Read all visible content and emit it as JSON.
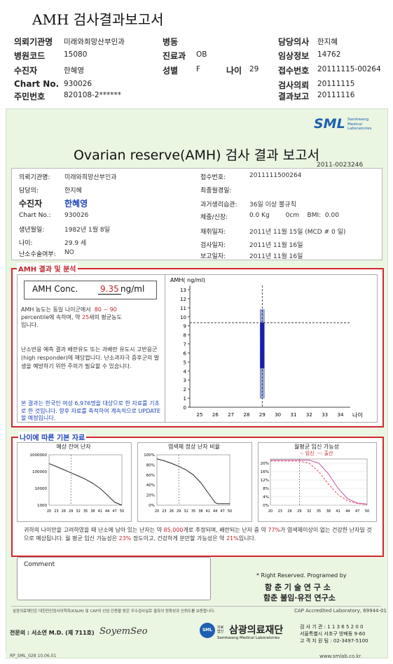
{
  "top": {
    "title": "AMH 검사결과보고서",
    "rows": [
      {
        "l1": "의뢰기관명",
        "v1": "미래와희망산부인과",
        "l2": "병동",
        "v2": "",
        "l3": "",
        "v3": "",
        "l4": "담당의사",
        "v4": "한지혜"
      },
      {
        "l1": "병원코드",
        "v1": "15080",
        "l2": "진료과",
        "v2": "OB",
        "l3": "",
        "v3": "",
        "l4": "임상정보",
        "v4": "14762"
      },
      {
        "l1": "수진자",
        "v1": "한혜영",
        "l2": "성별",
        "v2": "F",
        "l3": "나이",
        "v3": "29",
        "l4": "접수번호",
        "v4": "20111115-00264"
      },
      {
        "l1": "Chart No.",
        "v1": "930026",
        "l2": "",
        "v2": "",
        "l3": "",
        "v3": "",
        "l4": "검사의뢰",
        "v4": "20111115"
      },
      {
        "l1": "주민번호",
        "v1": "820108-2******",
        "l2": "",
        "v2": "",
        "l3": "",
        "v3": "",
        "l4": "결과보고",
        "v4": "20111116"
      }
    ]
  },
  "report": {
    "logo": "SML",
    "logo_sub1": "Samkwang",
    "logo_sub2": "Medical",
    "logo_sub3": "Laboratories",
    "title": "Ovarian reserve(AMH) 검사 결과 보고서",
    "report_no": "2011-0023246",
    "info_left": [
      {
        "label": "의뢰기관명:",
        "value": "미래와희망산부인과"
      },
      {
        "label": "담당의:",
        "value": "한지혜"
      },
      {
        "label": "수진자",
        "value": "한혜영"
      },
      {
        "label": "Chart No.:",
        "value": "930026"
      },
      {
        "label": "생년월일:",
        "value": "1982년 1월 8일"
      },
      {
        "label": "나이:",
        "value": "29.9 세"
      },
      {
        "label": "난소수술여부:",
        "value": "NO"
      }
    ],
    "info_right": [
      {
        "label": "접수번호:",
        "value": "2011111500264"
      },
      {
        "label": "최종월경일:",
        "value": ""
      },
      {
        "label": "과거생리습관:",
        "value": "36일 이상 불규칙"
      },
      {
        "label": "체중/신장:",
        "value": "0.0 Kg        0cm    BMI:  0.00"
      },
      {
        "label": "채취일자:",
        "value": "2011년 11월 15일 (MCD # 0 일)"
      },
      {
        "label": "검사일자:",
        "value": "2011년 11월 16일"
      },
      {
        "label": "보고일자:",
        "value": "2011년 11월 16일"
      }
    ],
    "amh_section": {
      "header": "AMH 결과 및 분석",
      "conc_label": "AMH Conc.",
      "conc_value": "9.35",
      "conc_unit": "ng/ml",
      "text1_a": "AMH 농도는 동일 나이군에서",
      "text1_pct": "80 ~ 90",
      "text1_b": "percentile에 속하며, 약",
      "text1_age": "25",
      "text1_c": "세의 평균농도",
      "text1_d": "입니다.",
      "text2": "난소반응 예측 결과 배란유도 또는 과배란 유도시 고반응군 (high responder)에 해당합니다. 난소과자극 증후군의 발생을 예방하기 위한 주의가 필요할 수 있습니다.",
      "text3": "본 결과는 한국인 여성 6,976명을 대상으로 한 자료를 기초로 한 것입니다. 향후 자료를 축적하여 계속적으로 UPDATE할 예정입니다."
    },
    "age_section": {
      "header": "나이에 따른 기본 자료",
      "chart1_title": "예상 잔여 난자",
      "chart2_title": "염색체 정상 난자 비율",
      "chart3_title": "월평균 임신 가능성",
      "chart3_legend_a": "-: 임신",
      "chart3_legend_b": "--: 출산",
      "summary_a": "귀하의 나이만을 고려하였을 때 난소에 남아 있는 난자는 약",
      "summary_eggs": "85,000",
      "summary_b": "개로 추정되며, 배란되는 난자 중 약",
      "summary_pct1": "77%",
      "summary_c": "가 염색체이상이 없는 건강한 난자일 것으로 예상됩니다. 월 평균 임신 가능성은",
      "summary_pct2": "23%",
      "summary_d": "정도이고, 건강하게 분만할 가능성은 약",
      "summary_pct3": "21%",
      "summary_e": "입니다."
    },
    "comment_label": "Comment",
    "rights": "* Right Reserved. Programed by",
    "prog1": "함 춘 기 술 연 구 소",
    "prog2": "함춘 불임·유전 연구소",
    "cert_note": "삼광의료재단은 대한진단검사의학회(KSLM) 및 CAP의 신임 인증을 받은 우수검사실로 결과의 정확성과 신뢰도를 보증합니다.",
    "cap": "CAP Accredited Laboratory,  69944-01",
    "signer": "전문의 : 서소연 M.D. (제 711호)",
    "signature": "SoyemSeo",
    "foundation": "삼광의료재단",
    "foundation_en": "Samkwang Medical Laboratories",
    "foundation_tag": "의료법인",
    "contact1": "검 사 기 관 : 1 1 3 6 5 2 0 0",
    "contact2": "서울특별시 서초구 방배동 9-60",
    "contact3": "고 객 지 원 팀 : 02-3497-5100",
    "form_code": "RP_SML_028  10.06.01",
    "website": "www.smlab.co.kr"
  },
  "chart_data": [
    {
      "type": "box",
      "title": "",
      "ylabel": "AMH( ng/ml)",
      "xlabel": "나이",
      "x_ticks": [
        25,
        26,
        27,
        28,
        29,
        30,
        31,
        32,
        33,
        34
      ],
      "y_ticks": [
        0,
        1,
        2,
        3,
        4,
        5,
        6,
        7,
        8,
        9,
        10,
        11,
        12,
        13
      ],
      "ylim": [
        0,
        13
      ],
      "patient_age": 29,
      "patient_value": 9.35,
      "box": {
        "x": 29,
        "whisker_low": 1.0,
        "q1": 4.3,
        "q3": 9.35,
        "whisker_high": 10.8
      }
    },
    {
      "type": "line",
      "title": "예상 잔여 난자",
      "x_ticks": [
        20,
        23,
        26,
        29,
        32,
        35,
        38,
        41,
        44,
        47,
        50
      ],
      "y_ticks": [
        1000,
        10000,
        100000,
        1000000
      ],
      "y_log": true,
      "x": [
        20,
        23,
        26,
        29,
        32,
        35,
        38,
        41,
        44,
        47,
        50
      ],
      "values": [
        300000,
        200000,
        130000,
        85000,
        55000,
        35000,
        20000,
        10000,
        4000,
        1500,
        1000
      ],
      "marker_x": 29
    },
    {
      "type": "line",
      "title": "염색체 정상 난자 비율",
      "x_ticks": [
        20,
        23,
        26,
        29,
        32,
        35,
        38,
        41,
        44,
        47,
        50
      ],
      "y_ticks": [
        "0%",
        "20%",
        "40%",
        "60%",
        "80%",
        "100%"
      ],
      "ylim": [
        0,
        100
      ],
      "x": [
        20,
        23,
        26,
        29,
        32,
        35,
        38,
        41,
        44,
        45,
        47,
        50
      ],
      "values": [
        92,
        88,
        83,
        77,
        70,
        60,
        45,
        25,
        5,
        3,
        3,
        3
      ],
      "marker_x": 29
    },
    {
      "type": "line",
      "title": "월평균 임신 가능성",
      "x_ticks": [
        20,
        23,
        26,
        29,
        32,
        35,
        38,
        41,
        44,
        47,
        50
      ],
      "y_ticks": [
        "0%",
        "4%",
        "8%",
        "12%",
        "16%",
        "20%"
      ],
      "ylim": [
        0,
        22
      ],
      "series": [
        {
          "name": "임신",
          "x": [
            20,
            23,
            26,
            29,
            32,
            35,
            38,
            41,
            44,
            47,
            50
          ],
          "values": [
            23,
            23,
            23,
            23,
            22,
            20,
            15,
            8,
            3,
            1,
            0.5
          ]
        },
        {
          "name": "출산",
          "x": [
            20,
            23,
            26,
            29,
            32,
            35,
            38,
            41,
            44,
            47,
            50
          ],
          "values": [
            21,
            21,
            21,
            21,
            20,
            16,
            10,
            5,
            2,
            0.8,
            0.3
          ]
        }
      ],
      "marker_x": 29
    }
  ]
}
